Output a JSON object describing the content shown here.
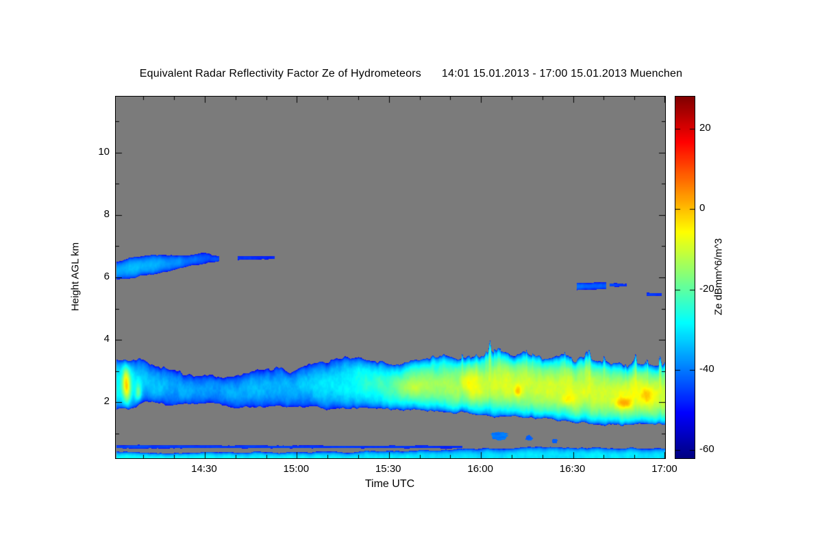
{
  "chart_data": {
    "type": "heatmap",
    "title": "Equivalent Radar Reflectivity Factor Ze of Hydrometeors",
    "period": "14:01 15.01.2013 - 17:00 15.01.2013 Muenchen",
    "xlabel": "Time UTC",
    "ylabel": "Height AGL km",
    "colorbar_label": "Ze dBmm^6/m^3",
    "colormap": "jet",
    "background_color": "#7b7b7b",
    "x_range_hours": [
      14.0167,
      17.0
    ],
    "y_range_km": [
      0.2,
      11.8
    ],
    "value_range_dB": [
      -62,
      28
    ],
    "x_ticks": [
      {
        "v": 14.5,
        "label": "14:30"
      },
      {
        "v": 15.0,
        "label": "15:00"
      },
      {
        "v": 15.5,
        "label": "15:30"
      },
      {
        "v": 16.0,
        "label": "16:00"
      },
      {
        "v": 16.5,
        "label": "16:30"
      },
      {
        "v": 17.0,
        "label": "17:00"
      }
    ],
    "x_minor_step_hours": 0.1666667,
    "y_ticks": [
      {
        "v": 2,
        "label": "2"
      },
      {
        "v": 4,
        "label": "4"
      },
      {
        "v": 6,
        "label": "6"
      },
      {
        "v": 8,
        "label": "8"
      },
      {
        "v": 10,
        "label": "10"
      }
    ],
    "y_minor_ticks": [
      1,
      3,
      5,
      7,
      9,
      11
    ],
    "colorbar_ticks": [
      {
        "v": -60,
        "label": "-60"
      },
      {
        "v": -40,
        "label": "-40"
      },
      {
        "v": -20,
        "label": "-20"
      },
      {
        "v": 0,
        "label": "0"
      },
      {
        "v": 20,
        "label": "20"
      }
    ],
    "features": [
      {
        "kind": "band",
        "name": "mid-level-precipitation-band",
        "seed": 1,
        "eb": 0.15,
        "et": 0.25,
        "spike": 0.5,
        "tex": 7,
        "points": [
          [
            14.02,
            1.75,
            3.3,
            -27
          ],
          [
            14.1,
            1.85,
            3.3,
            -29
          ],
          [
            14.2,
            1.95,
            3.2,
            -33
          ],
          [
            14.35,
            1.95,
            2.95,
            -36
          ],
          [
            14.5,
            1.9,
            2.75,
            -37
          ],
          [
            14.65,
            1.85,
            2.9,
            -36
          ],
          [
            14.8,
            1.85,
            3.0,
            -35
          ],
          [
            15.0,
            1.85,
            3.05,
            -34
          ],
          [
            15.15,
            1.8,
            3.2,
            -31
          ],
          [
            15.3,
            1.8,
            3.3,
            -27
          ],
          [
            15.5,
            1.78,
            3.32,
            -22
          ],
          [
            15.7,
            1.72,
            3.38,
            -17
          ],
          [
            15.9,
            1.65,
            3.48,
            -13
          ],
          [
            16.1,
            1.55,
            3.52,
            -10
          ],
          [
            16.3,
            1.45,
            3.42,
            -10
          ],
          [
            16.5,
            1.4,
            3.35,
            -9
          ],
          [
            16.7,
            1.33,
            3.28,
            -9
          ],
          [
            16.85,
            1.3,
            3.25,
            -8
          ],
          [
            17.0,
            1.28,
            3.2,
            -10
          ]
        ],
        "cores": [
          [
            14.075,
            2.5,
            0.022,
            0.75,
            27
          ],
          [
            14.14,
            2.25,
            0.016,
            0.33,
            17
          ],
          [
            15.63,
            2.45,
            0.07,
            0.4,
            7
          ],
          [
            15.95,
            2.6,
            0.05,
            0.6,
            6
          ],
          [
            16.2,
            2.35,
            0.022,
            0.2,
            11
          ],
          [
            16.47,
            2.05,
            0.035,
            0.18,
            9
          ],
          [
            16.78,
            1.95,
            0.05,
            0.18,
            13
          ],
          [
            16.9,
            2.2,
            0.03,
            0.25,
            8
          ]
        ]
      },
      {
        "kind": "band",
        "name": "upper-cloud-layer",
        "seed": 2,
        "eb": 0.08,
        "et": 0.1,
        "spike": 0,
        "tex": 5,
        "points": [
          [
            14.02,
            5.92,
            6.48,
            -36
          ],
          [
            14.12,
            5.98,
            6.66,
            -34
          ],
          [
            14.22,
            6.1,
            6.7,
            -35
          ],
          [
            14.33,
            6.25,
            6.72,
            -38
          ],
          [
            14.45,
            6.4,
            6.75,
            -41
          ],
          [
            14.58,
            6.52,
            6.72,
            -44
          ]
        ],
        "cores": []
      },
      {
        "kind": "band",
        "name": "upper-cloud-wisp",
        "seed": 3,
        "eb": 0.03,
        "et": 0.03,
        "spike": 0,
        "tex": 4,
        "points": [
          [
            14.68,
            6.55,
            6.68,
            -45
          ],
          [
            14.88,
            6.58,
            6.67,
            -47
          ]
        ],
        "cores": []
      },
      {
        "kind": "band",
        "name": "upper-patch-1633",
        "seed": 4,
        "eb": 0.05,
        "et": 0.05,
        "spike": 0,
        "tex": 4,
        "points": [
          [
            16.52,
            5.6,
            5.82,
            -41
          ],
          [
            16.68,
            5.62,
            5.85,
            -43
          ]
        ],
        "cores": []
      },
      {
        "kind": "band",
        "name": "upper-patch-1645",
        "seed": 5,
        "eb": 0.04,
        "et": 0.04,
        "spike": 0,
        "tex": 4,
        "points": [
          [
            16.7,
            5.7,
            5.82,
            -44
          ],
          [
            16.79,
            5.72,
            5.8,
            -46
          ]
        ],
        "cores": []
      },
      {
        "kind": "band",
        "name": "upper-patch-1656",
        "seed": 6,
        "eb": 0.03,
        "et": 0.03,
        "spike": 0,
        "tex": 4,
        "points": [
          [
            16.9,
            5.4,
            5.52,
            -45
          ],
          [
            16.98,
            5.4,
            5.5,
            -47
          ]
        ],
        "cores": []
      },
      {
        "kind": "band",
        "name": "boundary-layer-stripe",
        "seed": 7,
        "eb": 0.02,
        "et": 0.06,
        "spike": 0,
        "tex": 6,
        "points": [
          [
            14.02,
            0.03,
            0.4,
            -28
          ],
          [
            14.6,
            0.03,
            0.38,
            -29
          ],
          [
            15.2,
            0.03,
            0.4,
            -30
          ],
          [
            15.9,
            0.03,
            0.48,
            -31
          ],
          [
            16.3,
            0.03,
            0.55,
            -31
          ],
          [
            17.0,
            0.03,
            0.5,
            -30
          ]
        ],
        "cores": []
      },
      {
        "kind": "band",
        "name": "thin-layer-550m",
        "seed": 8,
        "eb": 0.02,
        "et": 0.02,
        "spike": 0,
        "tex": 3,
        "points": [
          [
            14.02,
            0.52,
            0.62,
            -44
          ],
          [
            15.9,
            0.52,
            0.6,
            -46
          ]
        ],
        "cores": []
      },
      {
        "kind": "blob",
        "name": "low-level-blob-1606",
        "t": 16.1,
        "h": 0.92,
        "rt": 0.045,
        "rh": 0.13,
        "peak": -40
      },
      {
        "kind": "blob",
        "name": "low-level-blob-1616",
        "t": 16.26,
        "h": 0.85,
        "rt": 0.018,
        "rh": 0.09,
        "peak": -42
      },
      {
        "kind": "blob",
        "name": "low-level-blob-1624",
        "t": 16.4,
        "h": 0.75,
        "rt": 0.015,
        "rh": 0.07,
        "peak": -43
      }
    ]
  }
}
